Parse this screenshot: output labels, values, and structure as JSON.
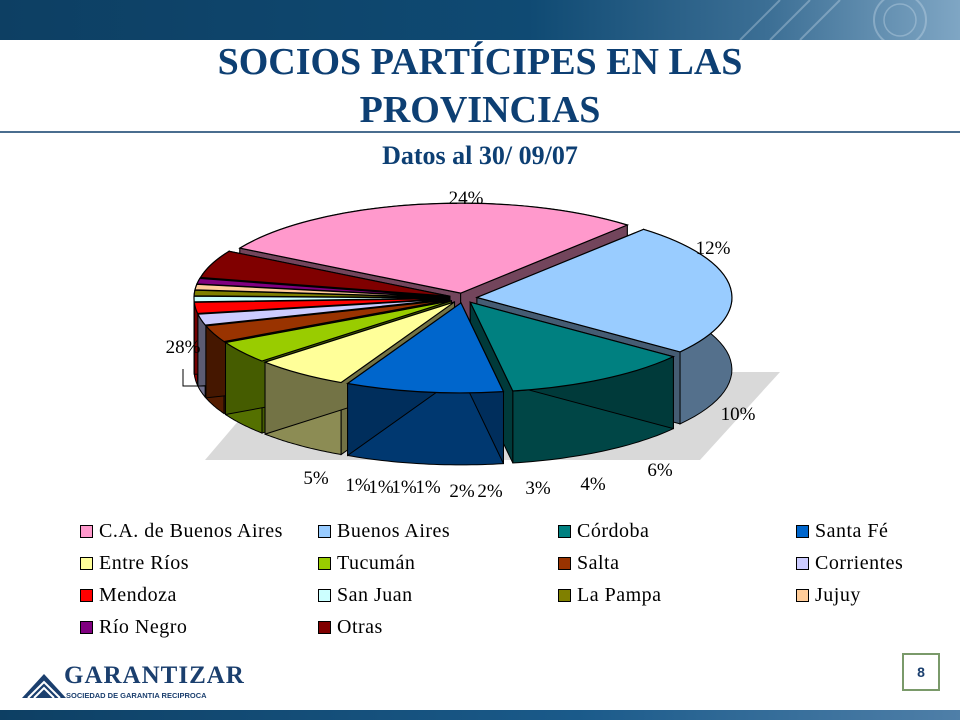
{
  "header": {
    "title_line1": "SOCIOS PARTÍCIPES EN LAS",
    "title_line2": "PROVINCIAS",
    "subtitle": "Datos al 30/ 09/07"
  },
  "chart_data": {
    "type": "pie",
    "title": "SOCIOS PARTÍCIPES EN LAS PROVINCIAS",
    "subtitle": "Datos al 30/ 09/07",
    "legend_position": "bottom",
    "slices": [
      {
        "name": "C.A. de Buenos Aires",
        "value": 28,
        "label": "28%",
        "color": "#ff99cc"
      },
      {
        "name": "Buenos Aires",
        "value": 24,
        "label": "24%",
        "color": "#99ccff"
      },
      {
        "name": "Córdoba",
        "value": 12,
        "label": "12%",
        "color": "#008080"
      },
      {
        "name": "Santa Fé",
        "value": 10,
        "label": "10%",
        "color": "#0066cc"
      },
      {
        "name": "Entre Ríos",
        "value": 6,
        "label": "6%",
        "color": "#ffff99"
      },
      {
        "name": "Tucumán",
        "value": 4,
        "label": "4%",
        "color": "#99cc00"
      },
      {
        "name": "Salta",
        "value": 3,
        "label": "3%",
        "color": "#993300"
      },
      {
        "name": "Corrientes",
        "value": 2,
        "label": "2%",
        "color": "#ccccff"
      },
      {
        "name": "Mendoza",
        "value": 2,
        "label": "2%",
        "color": "#ff0000"
      },
      {
        "name": "San Juan",
        "value": 1,
        "label": "1%",
        "color": "#ccffff"
      },
      {
        "name": "La Pampa",
        "value": 1,
        "label": "1%",
        "color": "#808000"
      },
      {
        "name": "Jujuy",
        "value": 1,
        "label": "1%",
        "color": "#ffcc99"
      },
      {
        "name": "Río Negro",
        "value": 1,
        "label": "1%",
        "color": "#800080"
      },
      {
        "name": "Otras",
        "value": 5,
        "label": "5%",
        "color": "#800000"
      }
    ]
  },
  "footer": {
    "logo_name": "GARANTIZAR",
    "logo_tagline": "SOCIEDAD DE GARANTIA RECIPROCA",
    "page_number": "8"
  }
}
